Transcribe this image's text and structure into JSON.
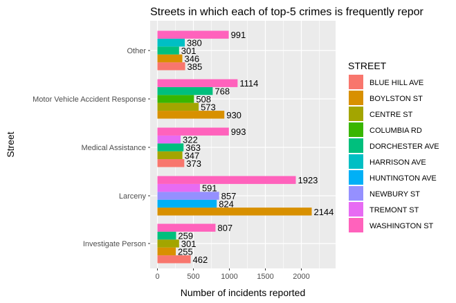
{
  "chart_data": {
    "type": "bar",
    "orientation": "horizontal",
    "title": "Streets in which each of top-5 crimes is frequently repor",
    "xlabel": "Number of incidents reported",
    "ylabel": "Street",
    "xlim": [
      0,
      2350
    ],
    "x_ticks": [
      0,
      500,
      1000,
      1500,
      2000
    ],
    "x_tick_labels": [
      "0",
      "500",
      "1000",
      "1500",
      "2000"
    ],
    "grid": true,
    "legend_position": "right",
    "legend_title": "STREET",
    "categories": [
      "Other",
      "Motor Vehicle Accident Response",
      "Medical Assistance",
      "Larceny",
      "Investigate Person"
    ],
    "series": [
      {
        "name": "BLUE HILL AVE",
        "color": "#F8766D",
        "values": [
          385,
          null,
          373,
          null,
          462
        ]
      },
      {
        "name": "BOYLSTON ST",
        "color": "#D89000",
        "values": [
          346,
          930,
          null,
          2144,
          255
        ]
      },
      {
        "name": "CENTRE ST",
        "color": "#A3A500",
        "values": [
          null,
          573,
          347,
          null,
          301
        ]
      },
      {
        "name": "COLUMBIA RD",
        "color": "#39B600",
        "values": [
          null,
          508,
          null,
          null,
          null
        ]
      },
      {
        "name": "DORCHESTER AVE",
        "color": "#00BF7D",
        "values": [
          301,
          768,
          363,
          null,
          259
        ]
      },
      {
        "name": "HARRISON AVE",
        "color": "#00BFC4",
        "values": [
          380,
          null,
          null,
          null,
          null
        ]
      },
      {
        "name": "HUNTINGTON AVE",
        "color": "#00B0F6",
        "values": [
          null,
          null,
          null,
          824,
          null
        ]
      },
      {
        "name": "NEWBURY ST",
        "color": "#9590FF",
        "values": [
          null,
          null,
          null,
          857,
          null
        ]
      },
      {
        "name": "TREMONT ST",
        "color": "#E76BF3",
        "values": [
          null,
          null,
          322,
          591,
          null
        ]
      },
      {
        "name": "WASHINGTON ST",
        "color": "#FF62BC",
        "values": [
          991,
          1114,
          993,
          1923,
          807
        ]
      }
    ],
    "panel_background": "#EBEBEB",
    "gridline_color": "#FFFFFF"
  }
}
